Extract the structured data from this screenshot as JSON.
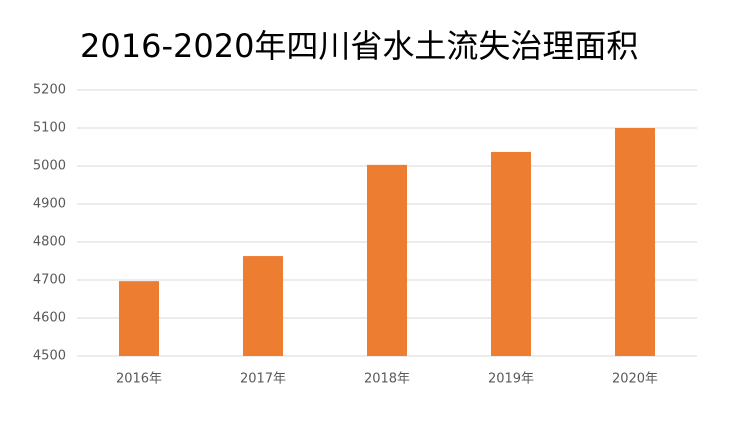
{
  "chart_data": {
    "type": "bar",
    "title": "2016-2020年四川省水土流失治理面积",
    "categories": [
      "2016年",
      "2017年",
      "2018年",
      "2019年",
      "2020年"
    ],
    "values": [
      4697,
      4763,
      5003,
      5037,
      5100
    ],
    "color": "#ed7d31",
    "ylim": [
      4500,
      5200
    ],
    "yticks": [
      4500,
      4600,
      4700,
      4800,
      4900,
      5000,
      5100,
      5200
    ],
    "grid": true
  }
}
